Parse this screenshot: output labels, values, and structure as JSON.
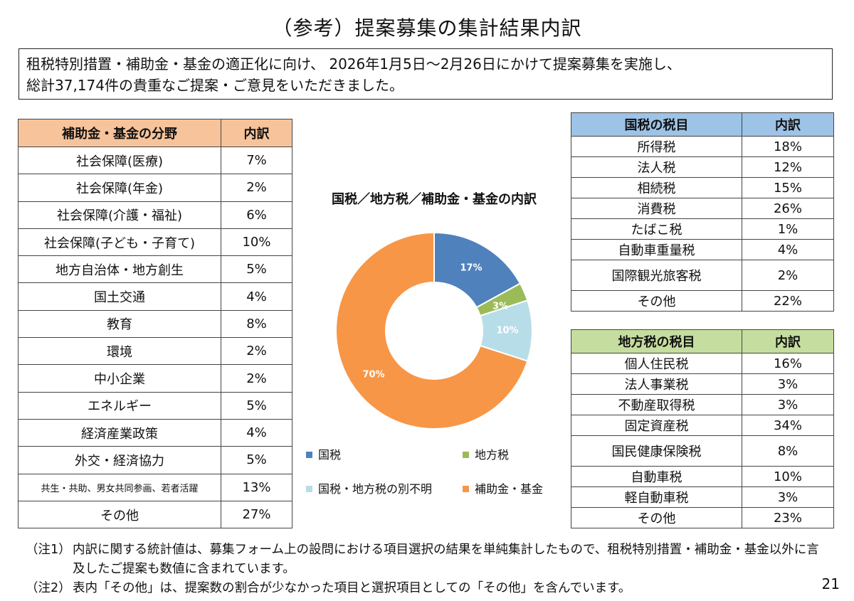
{
  "title": "（参考）提案募集の集計結果内訳",
  "intro": {
    "line1": "租税特別措置・補助金・基金の適正化に向け、 2026年1月5日～2月26日にかけて提案募集を実施し、",
    "line2": "総計37,174件の貴重なご提案・ご意見をいただきました。"
  },
  "subsidy_table": {
    "header": [
      "補助金・基金の分野",
      "内訳"
    ],
    "rows": [
      [
        "社会保障(医療)",
        "7%"
      ],
      [
        "社会保障(年金)",
        "2%"
      ],
      [
        "社会保障(介護・福祉)",
        "6%"
      ],
      [
        "社会保障(子ども・子育て)",
        "10%"
      ],
      [
        "地方自治体・地方創生",
        "5%"
      ],
      [
        "国土交通",
        "4%"
      ],
      [
        "教育",
        "8%"
      ],
      [
        "環境",
        "2%"
      ],
      [
        "中小企業",
        "2%"
      ],
      [
        "エネルギー",
        "5%"
      ],
      [
        "経済産業政策",
        "4%"
      ],
      [
        "外交・経済協力",
        "5%"
      ],
      [
        "共生・共助、男女共同参画、若者活躍",
        "13%"
      ],
      [
        "その他",
        "27%"
      ]
    ]
  },
  "national_tax_table": {
    "header": [
      "国税の税目",
      "内訳"
    ],
    "rows": [
      [
        "所得税",
        "18%"
      ],
      [
        "法人税",
        "12%"
      ],
      [
        "相続税",
        "15%"
      ],
      [
        "消費税",
        "26%"
      ],
      [
        "たばこ税",
        "1%"
      ],
      [
        "自動車重量税",
        "4%"
      ],
      [
        "国際観光旅客税",
        "2%"
      ],
      [
        "その他",
        "22%"
      ]
    ]
  },
  "local_tax_table": {
    "header": [
      "地方税の税目",
      "内訳"
    ],
    "rows": [
      [
        "個人住民税",
        "16%"
      ],
      [
        "法人事業税",
        "3%"
      ],
      [
        "不動産取得税",
        "3%"
      ],
      [
        "固定資産税",
        "34%"
      ],
      [
        "国民健康保険税",
        "8%"
      ],
      [
        "自動車税",
        "10%"
      ],
      [
        "軽自動車税",
        "3%"
      ],
      [
        "その他",
        "23%"
      ]
    ]
  },
  "chart_data": {
    "type": "pie",
    "title": "国税／地方税／補助金・基金の内訳",
    "categories": [
      "国税",
      "地方税",
      "国税・地方税の別不明",
      "補助金・基金"
    ],
    "values": [
      17,
      3,
      10,
      70
    ],
    "data_labels": [
      "17%",
      "3%",
      "10%",
      "70%"
    ],
    "colors": [
      "#4f81bd",
      "#9bbb59",
      "#b7dde8",
      "#f79646"
    ],
    "legend_position": "bottom"
  },
  "notes": [
    {
      "label": "（注1）",
      "text": "内訳に関する統計値は、募集フォーム上の設問における項目選択の結果を単純集計したもので、租税特別措置・補助金・基金以外に言及したご提案も数値に含まれています。"
    },
    {
      "label": "（注2）",
      "text": "表内「その他」は、提案数の割合が少なかった項目と選択項目としての「その他」を含んでいます。"
    }
  ],
  "page_number": "21"
}
